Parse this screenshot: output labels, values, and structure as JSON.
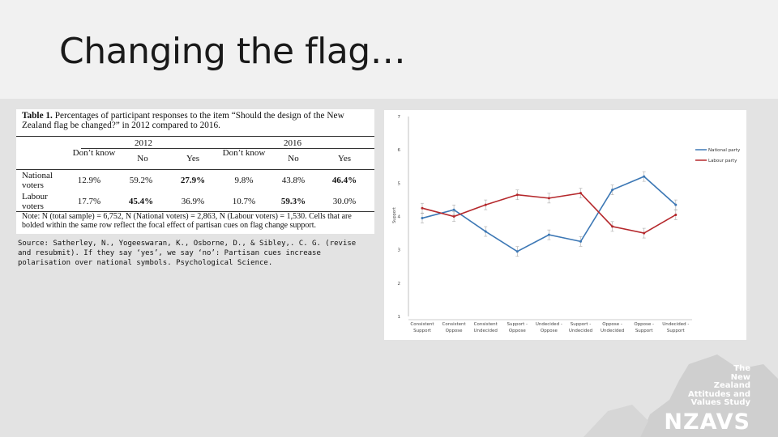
{
  "slide": {
    "title": "Changing the flag…"
  },
  "table": {
    "caption_bold": "Table 1.",
    "caption_text": " Percentages of participant responses to the item “Should the design of the New Zealand flag be changed?” in 2012 compared to 2016.",
    "years": [
      "2012",
      "2016"
    ],
    "headers": [
      "Don’t know",
      "No",
      "Yes",
      "Don’t know",
      "No",
      "Yes"
    ],
    "rows": [
      {
        "label": "National voters",
        "values": [
          "12.9%",
          "59.2%",
          "27.9%",
          "9.8%",
          "43.8%",
          "46.4%"
        ]
      },
      {
        "label": "Labour voters",
        "values": [
          "17.7%",
          "45.4%",
          "36.9%",
          "10.7%",
          "59.3%",
          "30.0%"
        ]
      }
    ],
    "note": "Note: N (total sample) = 6,752, N (National voters) = 2,863, N (Labour voters) = 1,530. Cells that are bolded within the same row reflect the focal effect of partisan cues on flag change support."
  },
  "source": "Source: Satherley, N., Yogeeswaran, K., Osborne, D., & Sibley,. C. G. (revise and resubmit). If they say ‘yes’, we say ‘no’: Partisan cues increase polarisation over national symbols. Psychological Science.",
  "chart_data": {
    "type": "line",
    "title": "",
    "xlabel": "",
    "ylabel": "Support",
    "ylim": [
      1,
      7
    ],
    "yticks": [
      "1",
      "2",
      "3",
      "4",
      "5",
      "6",
      "7"
    ],
    "categories": [
      [
        "Consistent",
        "Support"
      ],
      [
        "Consistent",
        "Oppose"
      ],
      [
        "Consistent",
        "Undecided"
      ],
      [
        "Support -",
        "Oppose"
      ],
      [
        "Undecided -",
        "Oppose"
      ],
      [
        "Support -",
        "Undecided"
      ],
      [
        "Oppose -",
        "Undecided"
      ],
      [
        "Oppose -",
        "Support"
      ],
      [
        "Undecided -",
        "Support"
      ]
    ],
    "series": [
      {
        "name": "National party",
        "color": "#3d78b5",
        "values": [
          3.95,
          4.2,
          3.55,
          2.95,
          3.45,
          3.25,
          4.8,
          5.2,
          4.35
        ]
      },
      {
        "name": "Labour party",
        "color": "#b5282c",
        "values": [
          4.25,
          4.0,
          4.35,
          4.65,
          4.55,
          4.7,
          3.7,
          3.5,
          4.05
        ]
      }
    ],
    "legend": "right"
  },
  "logo": {
    "lines": [
      "The",
      "New",
      "Zealand",
      "Attitudes and",
      "Values Study"
    ],
    "brand": "NZAVS"
  }
}
